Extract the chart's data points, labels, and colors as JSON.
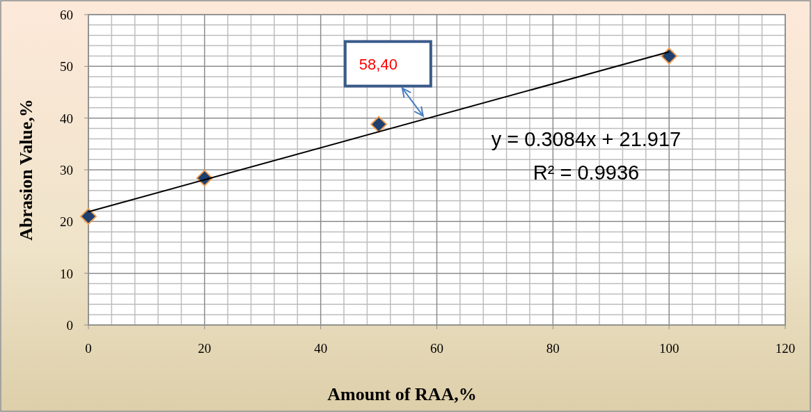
{
  "chart_data": {
    "type": "scatter",
    "xlabel": "Amount of RAA,%",
    "ylabel": "Abrasion Value,%",
    "x": [
      0,
      20,
      50,
      100
    ],
    "series": [
      {
        "color": "#1f3f6e",
        "values": [
          21,
          28.4,
          38.8,
          52
        ],
        "marker": "diamond"
      },
      {
        "type": "line",
        "color": "#000000",
        "x": [
          0,
          100
        ],
        "values": [
          21.9,
          52.8
        ],
        "marker": "none",
        "line_style": "solid"
      }
    ],
    "annotations": [
      {
        "text": "58,40",
        "x": 58,
        "y": 40
      },
      "y = 0.3084x + 21.917",
      "R² = 0.9936"
    ],
    "xlim": [
      0,
      120
    ],
    "xticks": [
      0,
      20,
      40,
      60,
      80,
      100,
      120
    ],
    "ylim": [
      0,
      60
    ],
    "yticks": [
      0,
      10,
      20,
      30,
      40,
      50,
      60
    ],
    "grid": true
  }
}
